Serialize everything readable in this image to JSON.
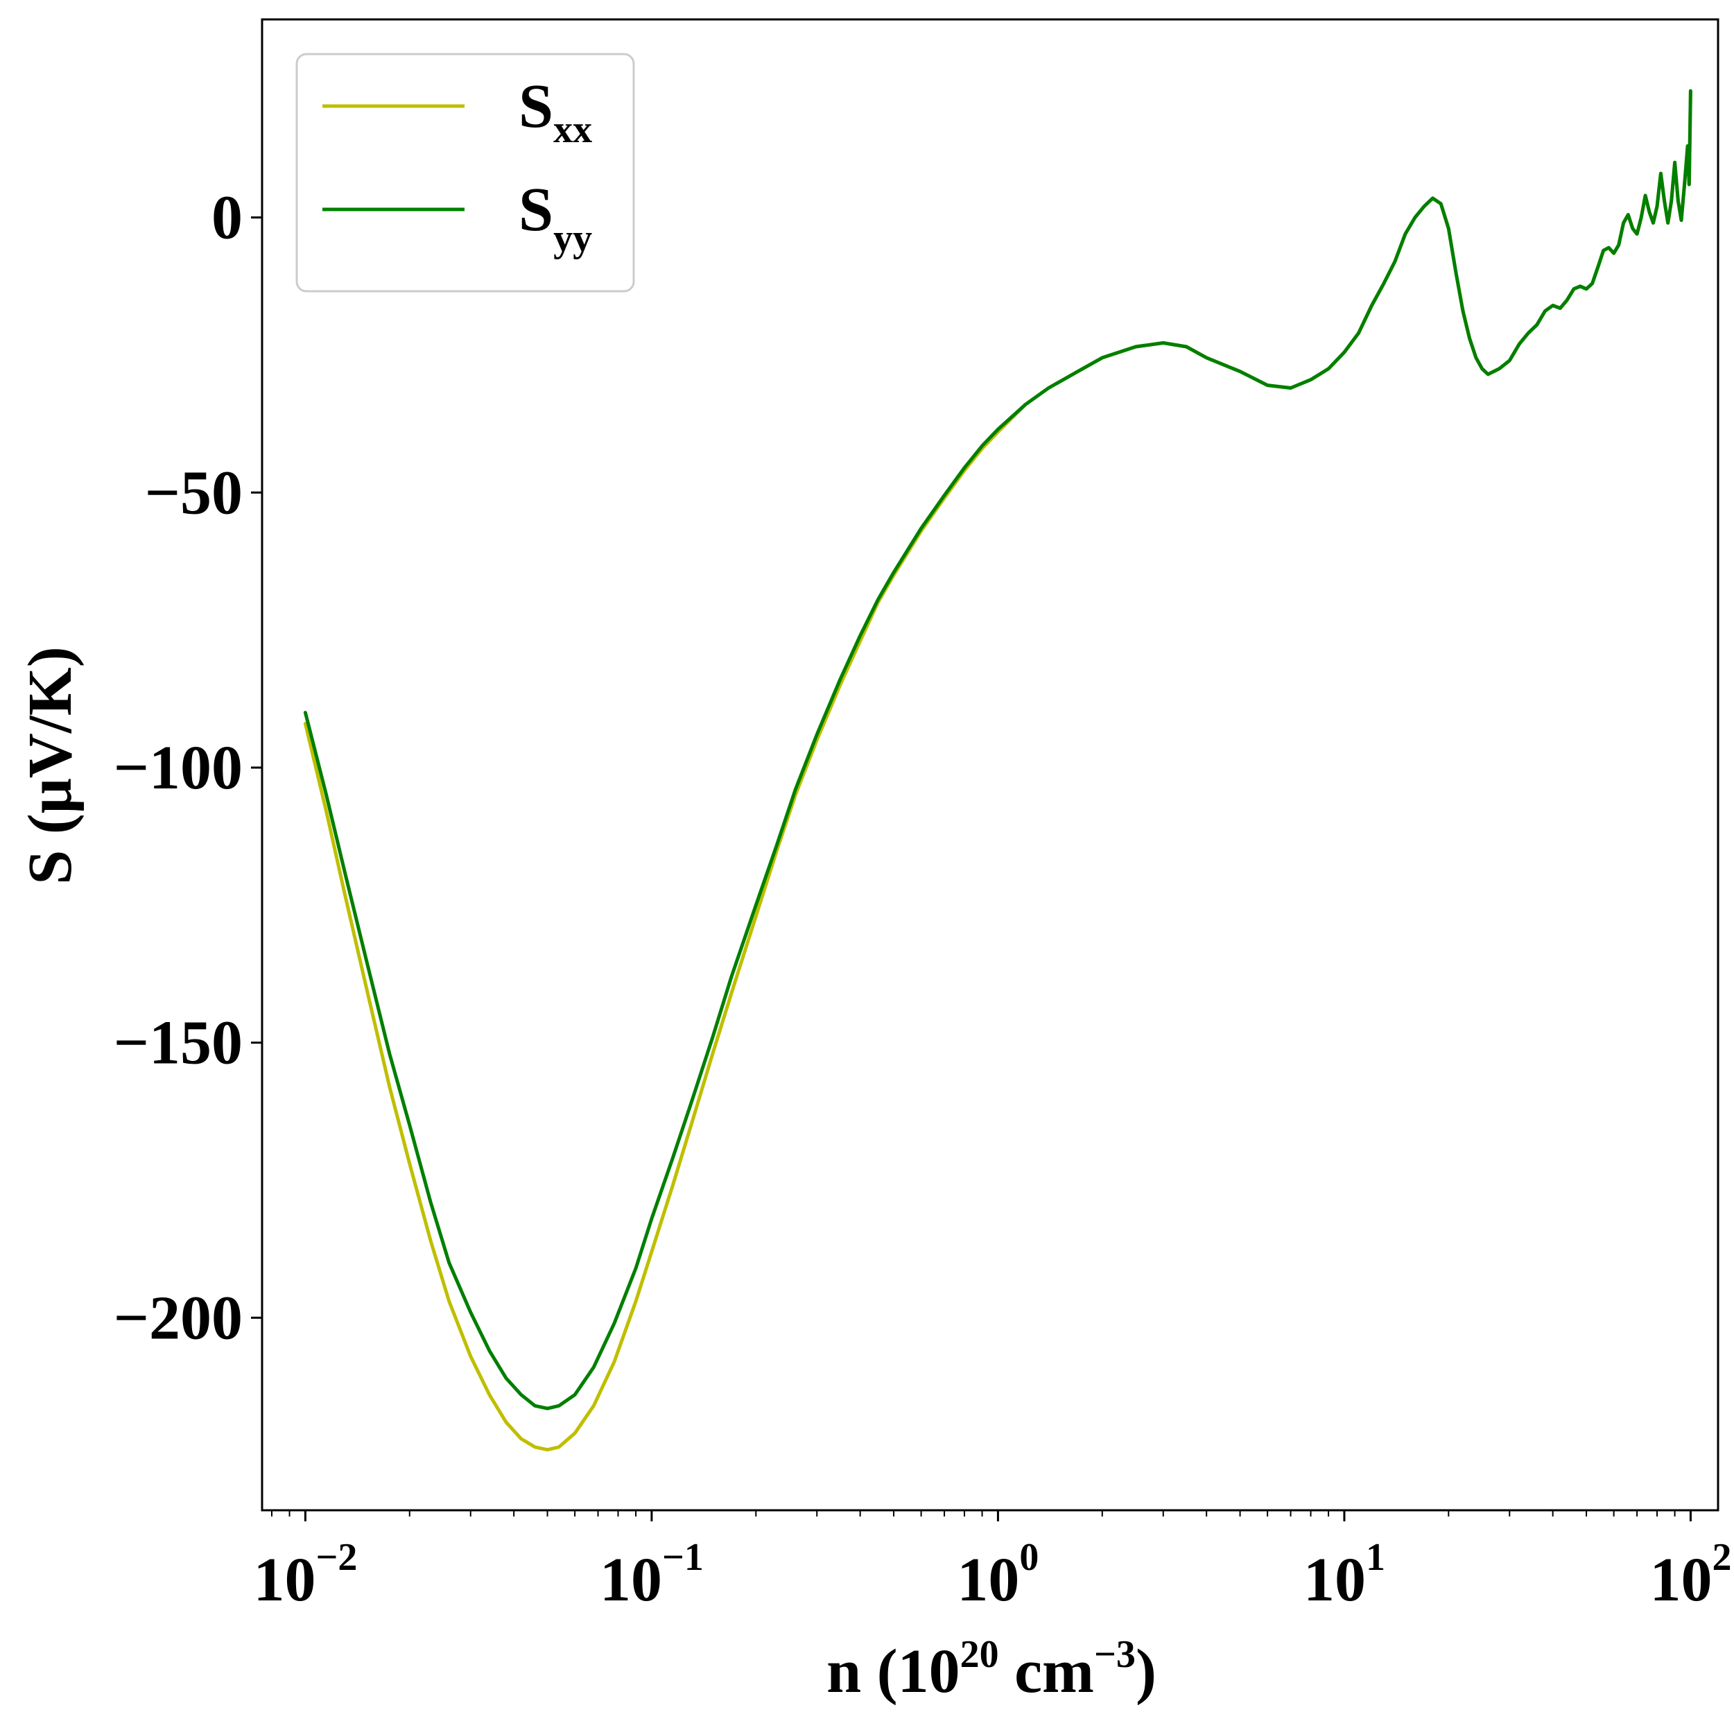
{
  "chart_data": {
    "type": "line",
    "xlabel": {
      "base": "n (10",
      "exp1": "20",
      "mid": " cm",
      "exp2": "−3",
      "tail": ")"
    },
    "ylabel": "S (μV/K)",
    "xscale": "log",
    "xlim": [
      0.0075,
      120
    ],
    "ylim": [
      -235,
      36
    ],
    "grid": false,
    "legend_position": "top-left",
    "x_ticks": [
      {
        "value": 0.01,
        "base": "10",
        "exp": "−2"
      },
      {
        "value": 0.1,
        "base": "10",
        "exp": "−1"
      },
      {
        "value": 1,
        "base": "10",
        "exp": "0"
      },
      {
        "value": 10,
        "base": "10",
        "exp": "1"
      },
      {
        "value": 100,
        "base": "10",
        "exp": "2"
      }
    ],
    "y_ticks": [
      {
        "value": 0,
        "label": "0"
      },
      {
        "value": -50,
        "label": "−50"
      },
      {
        "value": -100,
        "label": "−100"
      },
      {
        "value": -150,
        "label": "−150"
      },
      {
        "value": -200,
        "label": "−200"
      }
    ],
    "series": [
      {
        "key": "sxx",
        "name": {
          "base": "S",
          "sub": "xx"
        },
        "color": "#bfbf00",
        "points": [
          [
            0.01,
            -92
          ],
          [
            0.0115,
            -108
          ],
          [
            0.013,
            -123
          ],
          [
            0.015,
            -140
          ],
          [
            0.0175,
            -158
          ],
          [
            0.02,
            -172
          ],
          [
            0.023,
            -186
          ],
          [
            0.026,
            -197
          ],
          [
            0.03,
            -207
          ],
          [
            0.034,
            -214
          ],
          [
            0.038,
            -219
          ],
          [
            0.042,
            -222
          ],
          [
            0.046,
            -223.5
          ],
          [
            0.05,
            -224
          ],
          [
            0.054,
            -223.5
          ],
          [
            0.06,
            -221
          ],
          [
            0.068,
            -216
          ],
          [
            0.078,
            -208
          ],
          [
            0.09,
            -197
          ],
          [
            0.1,
            -188
          ],
          [
            0.115,
            -176
          ],
          [
            0.13,
            -165
          ],
          [
            0.15,
            -152
          ],
          [
            0.17,
            -141
          ],
          [
            0.2,
            -127
          ],
          [
            0.23,
            -115
          ],
          [
            0.26,
            -105
          ],
          [
            0.3,
            -95
          ],
          [
            0.35,
            -85
          ],
          [
            0.4,
            -77
          ],
          [
            0.45,
            -70
          ],
          [
            0.5,
            -65
          ],
          [
            0.6,
            -57
          ],
          [
            0.7,
            -51
          ],
          [
            0.8,
            -46
          ],
          [
            0.9,
            -42
          ],
          [
            1.0,
            -39
          ],
          [
            1.2,
            -34
          ],
          [
            1.4,
            -31
          ],
          [
            1.7,
            -28
          ],
          [
            2.0,
            -25.5
          ],
          [
            2.5,
            -23.5
          ],
          [
            3.0,
            -22.8
          ],
          [
            3.5,
            -23.5
          ],
          [
            4.0,
            -25.5
          ],
          [
            5.0,
            -28
          ],
          [
            6.0,
            -30.5
          ],
          [
            7.0,
            -31
          ],
          [
            8.0,
            -29.5
          ],
          [
            9.0,
            -27.5
          ],
          [
            10.0,
            -24.5
          ],
          [
            11.0,
            -21
          ],
          [
            12.0,
            -16
          ],
          [
            13.0,
            -12
          ],
          [
            14.0,
            -8
          ],
          [
            15.0,
            -3
          ],
          [
            16.0,
            0
          ],
          [
            17.0,
            2
          ],
          [
            18.0,
            3.5
          ],
          [
            19.0,
            2.5
          ],
          [
            20.0,
            -2
          ],
          [
            21.0,
            -10
          ],
          [
            22.0,
            -17
          ],
          [
            23.0,
            -22
          ],
          [
            24.0,
            -25.5
          ],
          [
            25.0,
            -27.5
          ],
          [
            26.0,
            -28.5
          ],
          [
            28.0,
            -27.5
          ],
          [
            30.0,
            -26
          ],
          [
            32.0,
            -23
          ],
          [
            34.0,
            -21
          ],
          [
            36.0,
            -19.5
          ],
          [
            38.0,
            -17
          ],
          [
            40.0,
            -16
          ],
          [
            42.0,
            -16.5
          ],
          [
            44.0,
            -15
          ],
          [
            46.0,
            -13
          ],
          [
            48.0,
            -12.5
          ],
          [
            50.0,
            -13
          ],
          [
            52.0,
            -12
          ],
          [
            54.0,
            -9
          ],
          [
            56.0,
            -6
          ],
          [
            58.0,
            -5.5
          ],
          [
            60.0,
            -6.5
          ],
          [
            62.0,
            -5
          ],
          [
            64.0,
            -1
          ],
          [
            66.0,
            0.5
          ],
          [
            68.0,
            -2
          ],
          [
            70.0,
            -3
          ],
          [
            72.0,
            0
          ],
          [
            74.0,
            4
          ],
          [
            76.0,
            1
          ],
          [
            78.0,
            -1
          ],
          [
            80.0,
            2
          ],
          [
            82.0,
            8
          ],
          [
            84.0,
            3
          ],
          [
            86.0,
            -1
          ],
          [
            88.0,
            3
          ],
          [
            90.0,
            10
          ],
          [
            92.0,
            3
          ],
          [
            94.0,
            -0.5
          ],
          [
            96.0,
            6
          ],
          [
            98.0,
            13
          ],
          [
            99.0,
            6
          ],
          [
            100.0,
            23
          ]
        ]
      },
      {
        "key": "syy",
        "name": {
          "base": "S",
          "sub": "yy"
        },
        "color": "#007f00",
        "points": [
          [
            0.01,
            -90
          ],
          [
            0.0115,
            -105
          ],
          [
            0.013,
            -119
          ],
          [
            0.015,
            -135
          ],
          [
            0.0175,
            -152
          ],
          [
            0.02,
            -165
          ],
          [
            0.023,
            -179
          ],
          [
            0.026,
            -190
          ],
          [
            0.03,
            -199
          ],
          [
            0.034,
            -206
          ],
          [
            0.038,
            -211
          ],
          [
            0.042,
            -214
          ],
          [
            0.046,
            -216
          ],
          [
            0.05,
            -216.5
          ],
          [
            0.054,
            -216
          ],
          [
            0.06,
            -214
          ],
          [
            0.068,
            -209
          ],
          [
            0.078,
            -201
          ],
          [
            0.09,
            -191
          ],
          [
            0.1,
            -182
          ],
          [
            0.115,
            -171
          ],
          [
            0.13,
            -161
          ],
          [
            0.15,
            -149
          ],
          [
            0.17,
            -138
          ],
          [
            0.2,
            -125
          ],
          [
            0.23,
            -114
          ],
          [
            0.26,
            -104
          ],
          [
            0.3,
            -94
          ],
          [
            0.35,
            -84
          ],
          [
            0.4,
            -76
          ],
          [
            0.45,
            -69.5
          ],
          [
            0.5,
            -64.5
          ],
          [
            0.6,
            -56.5
          ],
          [
            0.7,
            -50.5
          ],
          [
            0.8,
            -45.5
          ],
          [
            0.9,
            -41.5
          ],
          [
            1.0,
            -38.5
          ],
          [
            1.2,
            -34
          ],
          [
            1.4,
            -31
          ],
          [
            1.7,
            -28
          ],
          [
            2.0,
            -25.5
          ],
          [
            2.5,
            -23.5
          ],
          [
            3.0,
            -22.8
          ],
          [
            3.5,
            -23.5
          ],
          [
            4.0,
            -25.5
          ],
          [
            5.0,
            -28
          ],
          [
            6.0,
            -30.5
          ],
          [
            7.0,
            -31
          ],
          [
            8.0,
            -29.5
          ],
          [
            9.0,
            -27.5
          ],
          [
            10.0,
            -24.5
          ],
          [
            11.0,
            -21
          ],
          [
            12.0,
            -16
          ],
          [
            13.0,
            -12
          ],
          [
            14.0,
            -8
          ],
          [
            15.0,
            -3
          ],
          [
            16.0,
            0
          ],
          [
            17.0,
            2
          ],
          [
            18.0,
            3.5
          ],
          [
            19.0,
            2.5
          ],
          [
            20.0,
            -2
          ],
          [
            21.0,
            -10
          ],
          [
            22.0,
            -17
          ],
          [
            23.0,
            -22
          ],
          [
            24.0,
            -25.5
          ],
          [
            25.0,
            -27.5
          ],
          [
            26.0,
            -28.5
          ],
          [
            28.0,
            -27.5
          ],
          [
            30.0,
            -26
          ],
          [
            32.0,
            -23
          ],
          [
            34.0,
            -21
          ],
          [
            36.0,
            -19.5
          ],
          [
            38.0,
            -17
          ],
          [
            40.0,
            -16
          ],
          [
            42.0,
            -16.5
          ],
          [
            44.0,
            -15
          ],
          [
            46.0,
            -13
          ],
          [
            48.0,
            -12.5
          ],
          [
            50.0,
            -13
          ],
          [
            52.0,
            -12
          ],
          [
            54.0,
            -9
          ],
          [
            56.0,
            -6
          ],
          [
            58.0,
            -5.5
          ],
          [
            60.0,
            -6.5
          ],
          [
            62.0,
            -5
          ],
          [
            64.0,
            -1
          ],
          [
            66.0,
            0.5
          ],
          [
            68.0,
            -2
          ],
          [
            70.0,
            -3
          ],
          [
            72.0,
            0
          ],
          [
            74.0,
            4
          ],
          [
            76.0,
            1
          ],
          [
            78.0,
            -1
          ],
          [
            80.0,
            2
          ],
          [
            82.0,
            8
          ],
          [
            84.0,
            3
          ],
          [
            86.0,
            -1
          ],
          [
            88.0,
            3
          ],
          [
            90.0,
            10
          ],
          [
            92.0,
            3
          ],
          [
            94.0,
            -0.5
          ],
          [
            96.0,
            6
          ],
          [
            98.0,
            13
          ],
          [
            99.0,
            6
          ],
          [
            100.0,
            23
          ]
        ]
      }
    ]
  }
}
